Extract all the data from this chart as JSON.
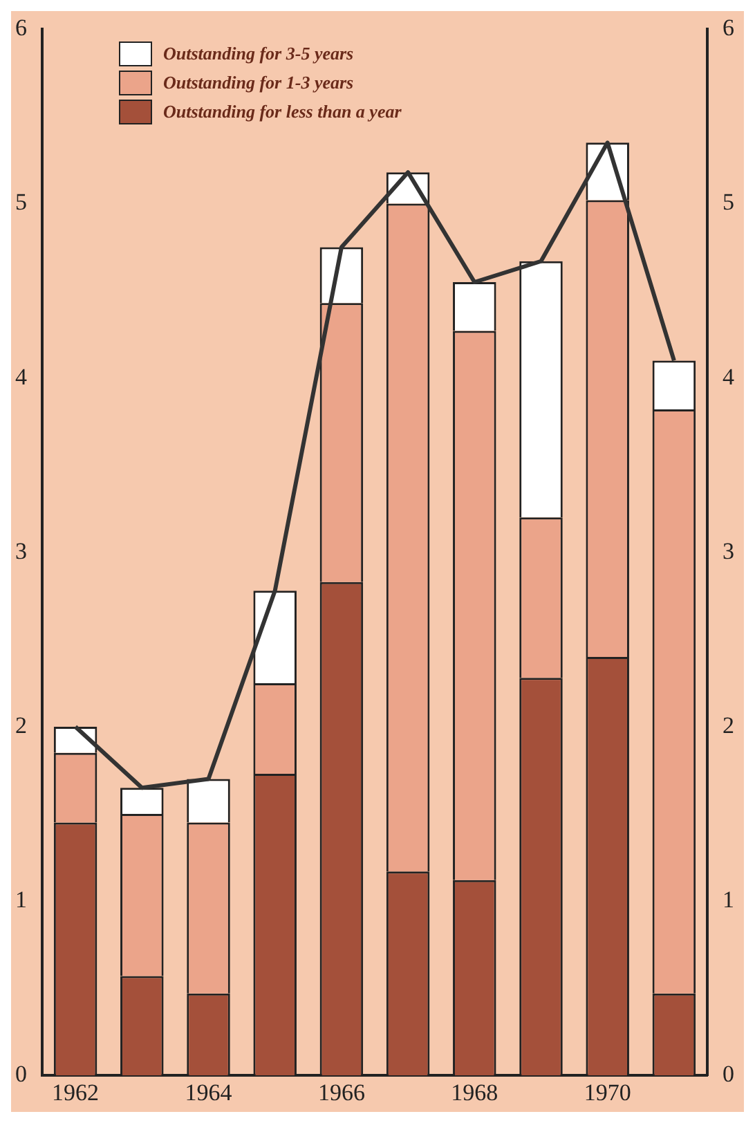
{
  "chart_data": {
    "type": "bar",
    "stacked": true,
    "categories": [
      "1962",
      null,
      "1964",
      null,
      "1966",
      null,
      "1968",
      null,
      "1970",
      null
    ],
    "series": [
      {
        "name": "Outstanding for less than a year",
        "color": "#a4503a",
        "values": [
          1.45,
          0.57,
          0.47,
          1.73,
          2.83,
          1.17,
          1.12,
          2.28,
          2.4,
          0.47
        ]
      },
      {
        "name": "Outstanding for 1-3 years",
        "color": "#eba48a",
        "values": [
          0.4,
          0.93,
          0.98,
          0.52,
          1.6,
          3.83,
          3.15,
          0.92,
          2.62,
          3.35
        ]
      },
      {
        "name": "Outstanding for 3-5 years",
        "color": "#ffffff",
        "values": [
          0.15,
          0.15,
          0.25,
          0.53,
          0.32,
          0.18,
          0.28,
          1.47,
          0.33,
          0.28
        ]
      },
      {
        "type": "line",
        "color": "#333333",
        "values": [
          2.0,
          1.65,
          1.7,
          2.78,
          4.75,
          5.18,
          4.55,
          4.67,
          5.35,
          4.1
        ]
      }
    ],
    "ylim": [
      0,
      6
    ],
    "yticks": [
      0,
      1,
      2,
      3,
      4,
      5,
      6
    ],
    "y2lim": [
      0,
      6
    ],
    "y2ticks": [
      0,
      1,
      2,
      3,
      4,
      5,
      6
    ],
    "grid": false,
    "legend": "top left",
    "marker": "none"
  }
}
